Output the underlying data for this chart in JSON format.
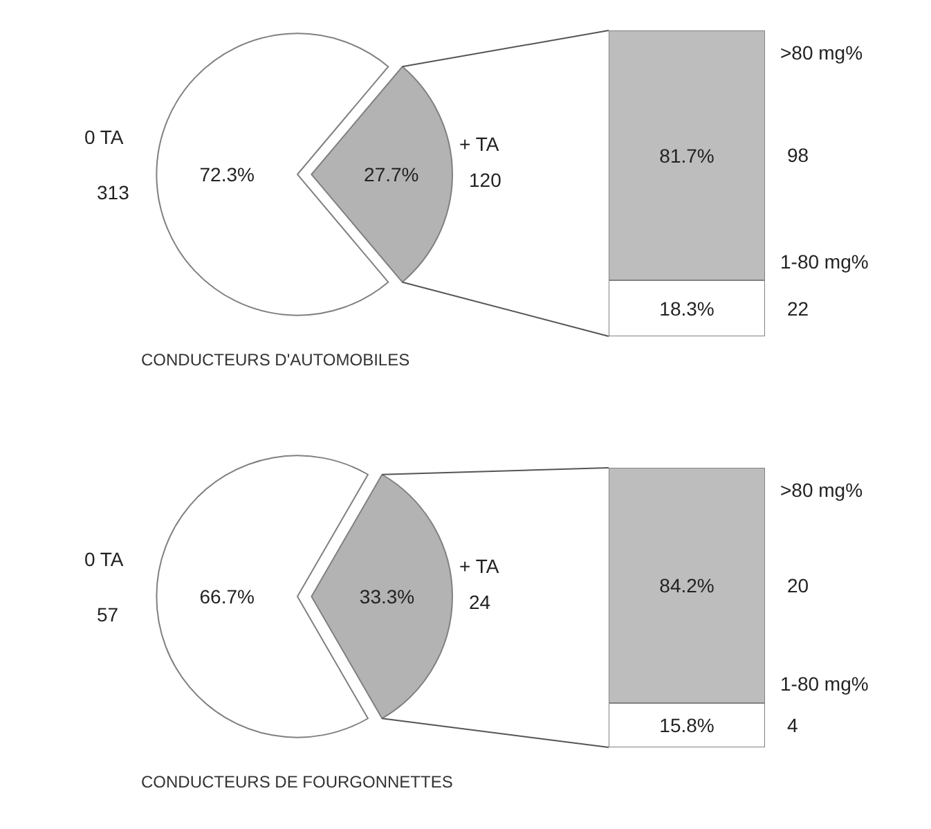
{
  "chart_data": [
    {
      "type": "pie",
      "subtitle": "CONDUCTEURS D'AUTOMOBILES",
      "categories": [
        "0 TA",
        "+ TA"
      ],
      "values": [
        72.3,
        27.7
      ],
      "value_labels": [
        "72.3%",
        "27.7%"
      ],
      "colors": [
        "#ffffff",
        "#b3b3b3"
      ],
      "annotations": [
        "313",
        "120"
      ]
    },
    {
      "type": "bar",
      "stacked": true,
      "categories": [
        null
      ],
      "series": [
        {
          "name": "1-80 mg%",
          "color": "#ffffff",
          "values": [
            18.3
          ],
          "value_labels": [
            "18.3%"
          ]
        },
        {
          "name": ">80 mg%",
          "color": "#bdbdbd",
          "values": [
            81.7
          ],
          "value_labels": [
            "81.7%"
          ]
        }
      ],
      "annotations": [
        "22",
        "98"
      ]
    },
    {
      "type": "pie",
      "subtitle": "CONDUCTEURS DE FOURGONNETTES",
      "categories": [
        "0 TA",
        "+ TA"
      ],
      "values": [
        66.7,
        33.3
      ],
      "value_labels": [
        "66.7%",
        "33.3%"
      ],
      "colors": [
        "#ffffff",
        "#b3b3b3"
      ],
      "annotations": [
        "57",
        "24"
      ]
    },
    {
      "type": "bar",
      "stacked": true,
      "categories": [
        null
      ],
      "series": [
        {
          "name": "1-80 mg%",
          "color": "#ffffff",
          "values": [
            15.8
          ],
          "value_labels": [
            "15.8%"
          ]
        },
        {
          "name": ">80 mg%",
          "color": "#bdbdbd",
          "values": [
            84.2
          ],
          "value_labels": [
            "84.2%"
          ]
        }
      ],
      "annotations": [
        "4",
        "20"
      ]
    }
  ]
}
